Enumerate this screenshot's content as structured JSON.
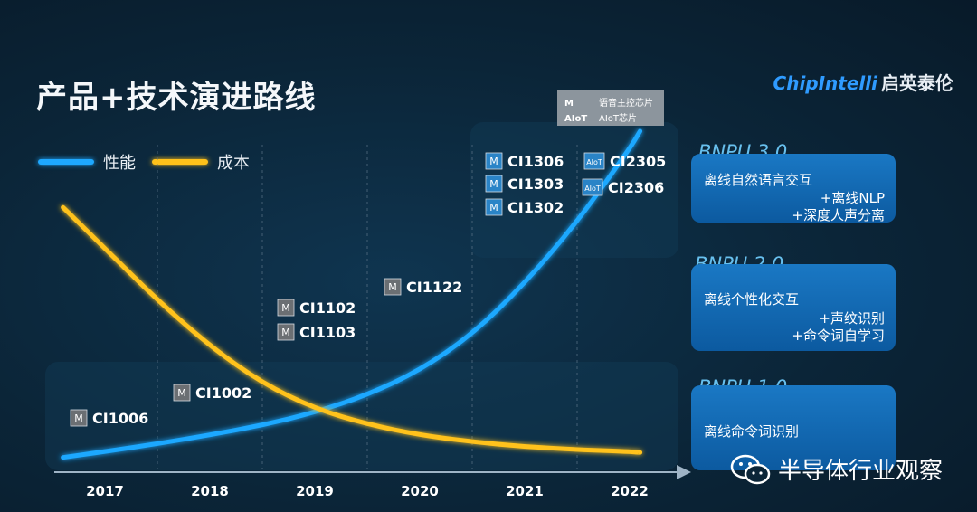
{
  "page": {
    "title": "产品+技术演进路线",
    "logo_en": "ChipIntelli",
    "logo_cn": "启英泰伦",
    "watermark": "半导体行业观察"
  },
  "legend": [
    {
      "name": "性能",
      "color": "#1ea8ff"
    },
    {
      "name": "成本",
      "color": "#ffc21a"
    }
  ],
  "type_legend": [
    {
      "tag": "M",
      "label": "语音主控芯片"
    },
    {
      "tag": "AIoT",
      "label": "AIoT芯片"
    }
  ],
  "chart_data": {
    "type": "line",
    "x_categories": [
      "2017",
      "2018",
      "2019",
      "2020",
      "2021",
      "2022"
    ],
    "series": [
      {
        "name": "性能",
        "color": "#1ea8ff",
        "points": [
          [
            2016.6,
            0.04
          ],
          [
            2017,
            0.1
          ],
          [
            2017.5,
            0.18
          ],
          [
            2018,
            0.27
          ],
          [
            2018.5,
            0.37
          ],
          [
            2019,
            0.5
          ],
          [
            2019.5,
            0.68
          ],
          [
            2020,
            0.93
          ],
          [
            2020.5,
            1.3
          ],
          [
            2021,
            1.82
          ],
          [
            2021.5,
            2.45
          ],
          [
            2022,
            3.2
          ],
          [
            2022.1,
            3.38
          ]
        ]
      },
      {
        "name": "成本",
        "color": "#ffc21a",
        "points": [
          [
            2016.6,
            2.6
          ],
          [
            2017,
            2.18
          ],
          [
            2017.5,
            1.65
          ],
          [
            2018,
            1.18
          ],
          [
            2018.5,
            0.8
          ],
          [
            2019,
            0.54
          ],
          [
            2019.5,
            0.38
          ],
          [
            2020,
            0.27
          ],
          [
            2020.5,
            0.2
          ],
          [
            2021,
            0.15
          ],
          [
            2021.5,
            0.12
          ],
          [
            2022,
            0.1
          ],
          [
            2022.1,
            0.09
          ]
        ]
      }
    ],
    "products": [
      {
        "type": "M",
        "tag": "M",
        "name": "CI1006"
      },
      {
        "type": "M",
        "tag": "M",
        "name": "CI1002"
      },
      {
        "type": "M",
        "tag": "M",
        "name": "CI1102"
      },
      {
        "type": "M",
        "tag": "M",
        "name": "CI1103"
      },
      {
        "type": "M",
        "tag": "M",
        "name": "CI1122"
      },
      {
        "type": "M",
        "tag": "M",
        "name": "CI1306"
      },
      {
        "type": "M",
        "tag": "M",
        "name": "CI1303"
      },
      {
        "type": "M",
        "tag": "M",
        "name": "CI1302"
      },
      {
        "type": "AIoT",
        "tag": "AIoT",
        "name": "CI2305"
      },
      {
        "type": "AIoT",
        "tag": "AIoT",
        "name": "CI2306"
      }
    ]
  },
  "bnpu": [
    {
      "label": "BNPU 3.0",
      "main": "离线自然语言交互",
      "subs": [
        "+离线NLP",
        "+深度人声分离"
      ]
    },
    {
      "label": "BNPU 2.0",
      "main": "离线个性化交互",
      "subs": [
        "+声纹识别",
        "+命令词自学习"
      ]
    },
    {
      "label": "BNPU 1.0",
      "main": "离线命令词识别",
      "subs": []
    }
  ]
}
